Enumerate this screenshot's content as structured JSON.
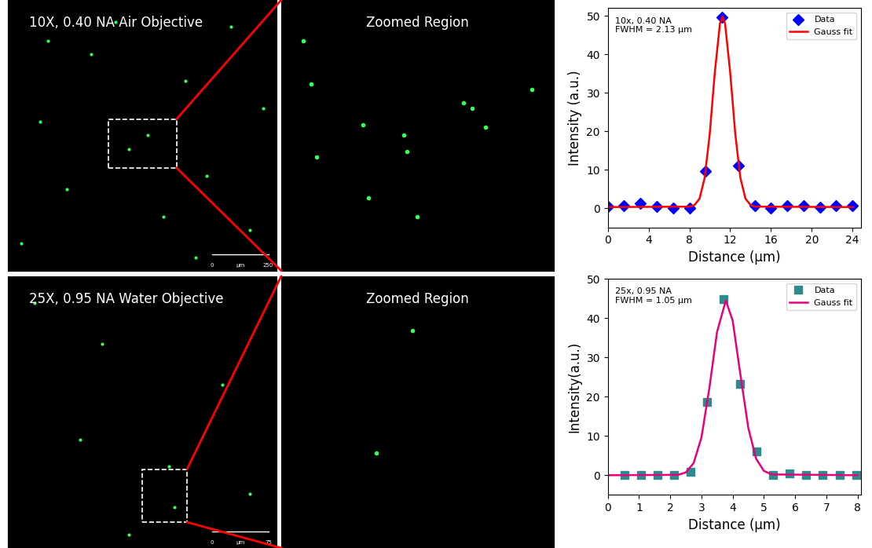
{
  "images": [
    {
      "title": "10X, 0.40 NA Air Objective",
      "zoom_title": "Zoomed Region",
      "scale_bar": {
        "start": 0,
        "unit": "μm",
        "end": 250
      }
    },
    {
      "title": "25X, 0.95 NA Water Objective",
      "zoom_title": "Zoomed Region",
      "scale_bar": {
        "start": 0,
        "unit": "μm",
        "end": 75
      }
    }
  ],
  "chart_data": [
    {
      "type": "scatter",
      "annotation": "10x, 0.40 NA\nFWHM = 2.13 μm",
      "x_label": "Distance (μm)",
      "y_label": "Intensity (a.u.)",
      "xlim": [
        0,
        24.8
      ],
      "xticks": [
        0,
        4,
        8,
        12,
        16,
        20,
        24
      ],
      "ylim": [
        -5,
        52
      ],
      "yticks": [
        0,
        10,
        20,
        30,
        40,
        50
      ],
      "legend": "upper right",
      "series": [
        {
          "name": "Data",
          "type": "scatter",
          "color": "#0000ff",
          "marker": "diamond",
          "x": [
            0,
            1.6,
            3.2,
            4.8,
            6.4,
            8.0,
            9.6,
            11.2,
            12.8,
            14.4,
            16.0,
            17.6,
            19.2,
            20.8,
            22.4,
            24.0
          ],
          "values": [
            0.5,
            0.6,
            1.2,
            0.5,
            0,
            0,
            9.7,
            49.7,
            11,
            0.6,
            0,
            0.6,
            0.6,
            0.2,
            0.6,
            0.6
          ]
        },
        {
          "name": "Gauss fit",
          "type": "line",
          "color": "#ff0000",
          "marker": "none",
          "x": [
            0,
            8,
            8.5,
            9,
            9.5,
            10,
            10.5,
            11,
            11.25,
            11.5,
            12,
            12.5,
            13,
            13.5,
            14,
            14.5,
            24
          ],
          "values": [
            0.3,
            0.4,
            0.8,
            2.5,
            7.9,
            19.4,
            35.4,
            48,
            49.8,
            48,
            35.4,
            19.4,
            7.9,
            2.5,
            0.8,
            0.4,
            0.3
          ]
        }
      ]
    },
    {
      "type": "scatter",
      "annotation": "25x, 0.95 NA\nFWHM = 1.05 μm",
      "x_label": "Distance (μm)",
      "y_label": "Intensity(a.u.)",
      "xlim": [
        0,
        8.1
      ],
      "xticks": [
        0,
        1,
        2,
        3,
        4,
        5,
        6,
        7,
        8
      ],
      "ylim": [
        -5,
        50
      ],
      "yticks": [
        0,
        10,
        20,
        30,
        40,
        50
      ],
      "legend": "upper right",
      "series": [
        {
          "name": "Data",
          "type": "scatter",
          "color": "#2e8b8b",
          "marker": "square",
          "x": [
            0.53,
            1.06,
            1.59,
            2.12,
            2.65,
            3.18,
            3.71,
            4.24,
            4.77,
            5.3,
            5.83,
            6.36,
            6.89,
            7.42,
            7.95
          ],
          "values": [
            0,
            0,
            0,
            0,
            0.8,
            18.7,
            44.8,
            23.3,
            6,
            0,
            0.5,
            0,
            0,
            0,
            0
          ]
        },
        {
          "name": "Gauss fit",
          "type": "line",
          "color": "#e6007e",
          "marker": "none",
          "x": [
            0,
            2.25,
            2.5,
            2.75,
            3.0,
            3.25,
            3.5,
            3.78,
            4.0,
            4.25,
            4.5,
            4.75,
            5.0,
            5.25,
            8
          ],
          "values": [
            0,
            0.1,
            0.7,
            3.1,
            9.6,
            22,
            36.5,
            44.5,
            39.4,
            25.5,
            12.1,
            4.2,
            1.1,
            0.2,
            0
          ]
        }
      ]
    }
  ]
}
